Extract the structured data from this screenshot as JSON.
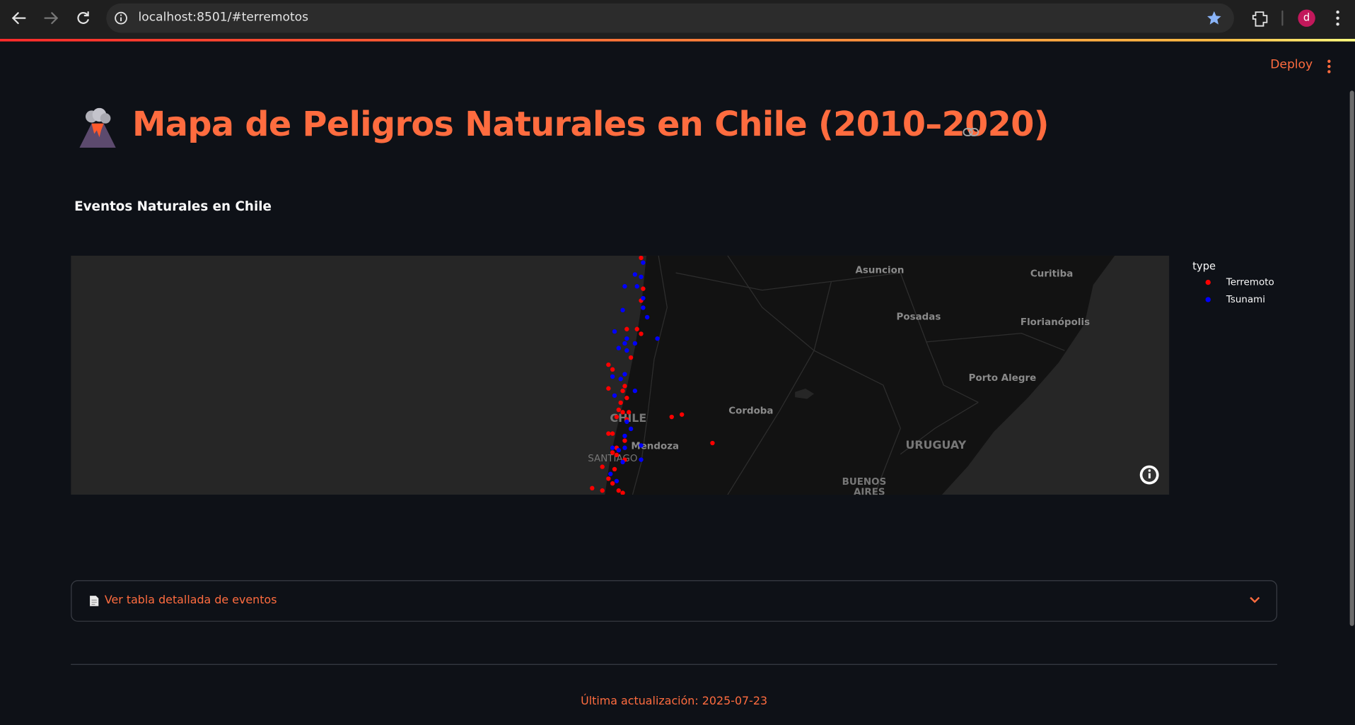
{
  "browser": {
    "url": "localhost:8501/#terremotos",
    "avatar": "d"
  },
  "app": {
    "deploy": "Deploy",
    "title": "Mapa de Peligros Naturales en Chile (2010–2020)",
    "subheader": "Eventos Naturales en Chile",
    "expander": "Ver tabla detallada de eventos",
    "footer": "Última actualización: 2025-07-23"
  },
  "chart_data": {
    "type": "scattermap",
    "legend_title": "type",
    "basemap_labels": [
      "Asuncion",
      "Curitiba",
      "Posadas",
      "Florianópolis",
      "Porto Alegre",
      "Cordoba",
      "CHILE",
      "Mendoza",
      "URUGUAY",
      "SANTIAGO",
      "BUENOS",
      "AIRES"
    ],
    "series": [
      {
        "name": "Terremoto",
        "color": "#ff0000",
        "lon": [
          -69.3,
          -69.2,
          -69.3,
          -70.0,
          -69.5,
          -69.3,
          -69.8,
          -70.9,
          -70.7,
          -70.1,
          -70.9,
          -70.2,
          -70.0,
          -70.3,
          -70.4,
          -70.2,
          -69.9,
          -70.5,
          -70.0,
          -67.8,
          -67.3,
          -70.7,
          -70.9,
          -70.1,
          -70.7,
          -70.5,
          -70.1,
          -71.2,
          -70.6,
          -70.9,
          -70.7,
          -71.7,
          -70.4,
          -71.2,
          -70.2,
          -65.8,
          -70.5
        ],
        "lat": [
          -25.0,
          -26.3,
          -26.8,
          -28.0,
          -28.0,
          -28.2,
          -29.2,
          -29.5,
          -29.7,
          -30.4,
          -30.5,
          -30.6,
          -30.9,
          -31.1,
          -31.4,
          -31.5,
          -31.5,
          -31.7,
          -31.8,
          -31.7,
          -31.6,
          -32.4,
          -32.4,
          -32.7,
          -33.2,
          -33.3,
          -33.5,
          -33.8,
          -33.9,
          -34.3,
          -34.5,
          -34.7,
          -34.8,
          -34.8,
          -34.9,
          -32.8,
          -33.0
        ]
      },
      {
        "name": "Tsunami",
        "color": "#0000ff",
        "lon": [
          -69.2,
          -69.6,
          -69.3,
          -70.1,
          -69.5,
          -69.2,
          -69.2,
          -70.2,
          -69.0,
          -70.6,
          -70.0,
          -70.1,
          -69.6,
          -70.4,
          -70.0,
          -68.5,
          -70.7,
          -70.1,
          -70.3,
          -69.6,
          -70.6,
          -70.0,
          -69.8,
          -70.1,
          -69.3,
          -70.7,
          -70.4,
          -70.1,
          -70.2,
          -69.3,
          -70.5,
          -70.8
        ],
        "lat": [
          -25.2,
          -25.7,
          -25.8,
          -26.2,
          -26.2,
          -26.7,
          -27.1,
          -27.2,
          -27.5,
          -28.1,
          -28.4,
          -28.6,
          -28.6,
          -28.8,
          -28.9,
          -28.4,
          -30.0,
          -29.9,
          -30.1,
          -30.6,
          -30.8,
          -31.9,
          -32.2,
          -32.5,
          -32.9,
          -33.0,
          -33.1,
          -33.0,
          -33.6,
          -33.5,
          -34.4,
          -34.1
        ]
      }
    ]
  }
}
